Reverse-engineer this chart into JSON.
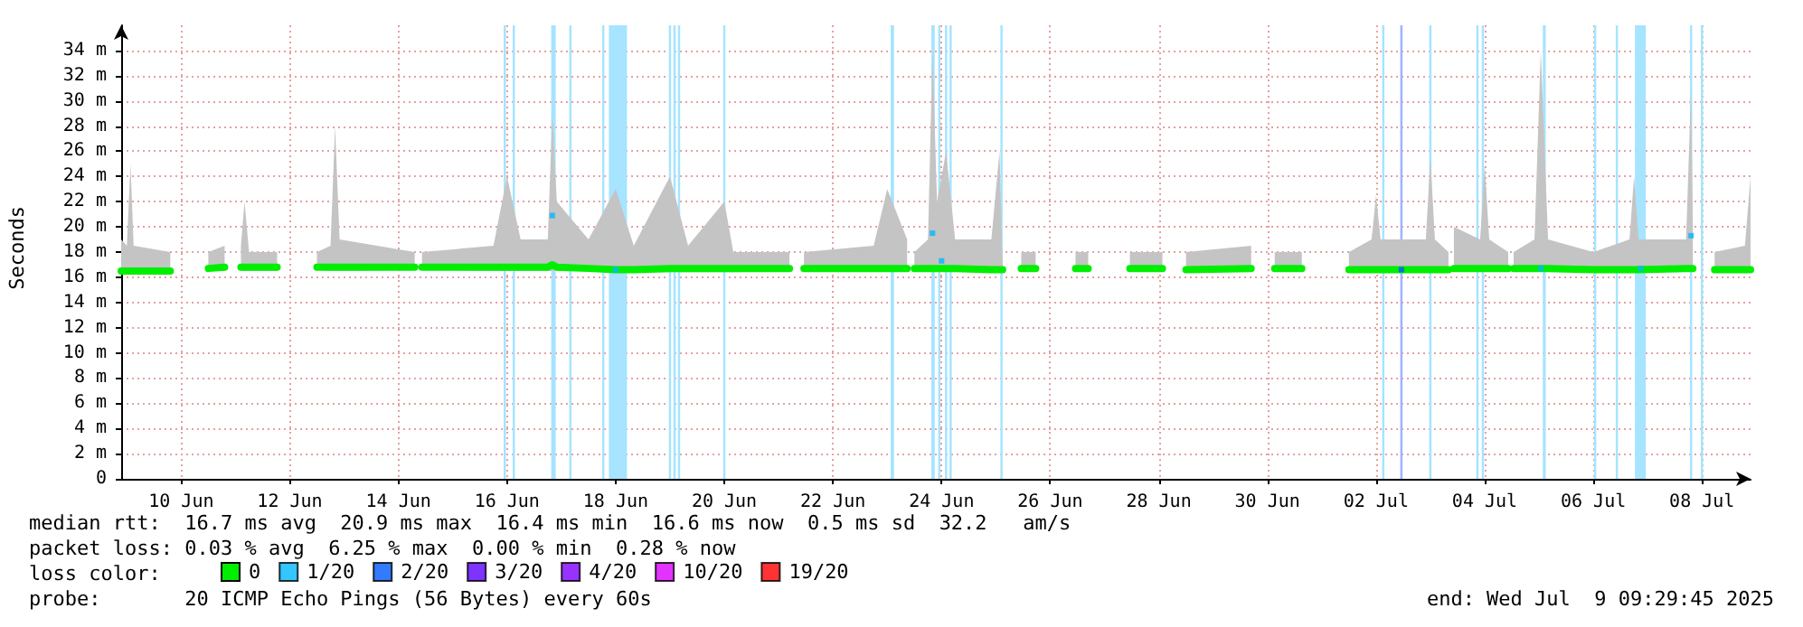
{
  "chart_data": {
    "type": "line",
    "ylabel": "Seconds",
    "legend_title": "loss color:",
    "legend": "bottom left",
    "grid": true,
    "xlim": [
      "2025-06-09T09:29",
      "2025-07-09T09:29"
    ],
    "xticks": [
      {
        "value": "2025-06-10T12:00",
        "label": "10 Jun"
      },
      {
        "value": "2025-06-12T12:00",
        "label": "12 Jun"
      },
      {
        "value": "2025-06-14T12:00",
        "label": "14 Jun"
      },
      {
        "value": "2025-06-16T12:00",
        "label": "16 Jun"
      },
      {
        "value": "2025-06-18T12:00",
        "label": "18 Jun"
      },
      {
        "value": "2025-06-20T12:00",
        "label": "20 Jun"
      },
      {
        "value": "2025-06-22T12:00",
        "label": "22 Jun"
      },
      {
        "value": "2025-06-24T12:00",
        "label": "24 Jun"
      },
      {
        "value": "2025-06-26T12:00",
        "label": "26 Jun"
      },
      {
        "value": "2025-06-28T12:00",
        "label": "28 Jun"
      },
      {
        "value": "2025-06-30T12:00",
        "label": "30 Jun"
      },
      {
        "value": "2025-07-02T12:00",
        "label": "02 Jul"
      },
      {
        "value": "2025-07-04T12:00",
        "label": "04 Jul"
      },
      {
        "value": "2025-07-06T12:00",
        "label": "06 Jul"
      },
      {
        "value": "2025-07-08T12:00",
        "label": "08 Jul"
      }
    ],
    "ylim": [
      0,
      36
    ],
    "yticks": [
      {
        "value": 0,
        "label": "0"
      },
      {
        "value": 2,
        "label": "2 m"
      },
      {
        "value": 4,
        "label": "4 m"
      },
      {
        "value": 6,
        "label": "6 m"
      },
      {
        "value": 8,
        "label": "8 m"
      },
      {
        "value": 10,
        "label": "10 m"
      },
      {
        "value": 12,
        "label": "12 m"
      },
      {
        "value": 14,
        "label": "14 m"
      },
      {
        "value": 16,
        "label": "16 m"
      },
      {
        "value": 18,
        "label": "18 m"
      },
      {
        "value": 20,
        "label": "20 m"
      },
      {
        "value": 22,
        "label": "22 m"
      },
      {
        "value": 24,
        "label": "24 m"
      },
      {
        "value": 26,
        "label": "26 m"
      },
      {
        "value": 28,
        "label": "28 m"
      },
      {
        "value": 30,
        "label": "30 m"
      },
      {
        "value": 32,
        "label": "32 m"
      },
      {
        "value": 34,
        "label": "34 m"
      }
    ],
    "series": [
      {
        "name": "0",
        "type": "line",
        "color": "#00ee00",
        "marker": "none",
        "x": [
          "2025-06-09T09:29",
          "2025-06-09T12:00",
          "2025-06-09T13:36",
          "2025-06-09T15:00",
          "2025-06-10T07:12",
          "2025-06-10T12:00",
          "2025-06-11T00:00",
          "2025-06-11T07:12",
          "2025-06-11T10:00",
          "2025-06-11T14:24",
          "2025-06-11T16:00",
          "2025-06-11T18:00",
          "2025-06-12T06:24",
          "2025-06-12T15:00",
          "2025-06-13T00:00",
          "2025-06-13T06:00",
          "2025-06-13T08:00",
          "2025-06-13T10:00",
          "2025-06-14T19:12",
          "2025-06-14T21:00",
          "2025-06-14T22:24",
          "2025-06-16T06:00",
          "2025-06-16T12:00",
          "2025-06-16T18:00",
          "2025-06-17T06:00",
          "2025-06-17T08:00",
          "2025-06-17T10:00",
          "2025-06-18T00:00",
          "2025-06-18T12:00",
          "2025-06-18T20:00",
          "2025-06-19T12:00",
          "2025-06-19T20:00",
          "2025-06-20T12:00",
          "2025-06-20T16:00",
          "2025-06-21T16:48",
          "2025-06-21T20:00",
          "2025-06-21T23:12",
          "2025-06-23T06:00",
          "2025-06-23T12:00",
          "2025-06-23T20:48",
          "2025-06-23T22:00",
          "2025-06-24T00:00",
          "2025-06-24T06:00",
          "2025-06-24T08:00",
          "2025-06-24T10:00",
          "2025-06-24T14:00",
          "2025-06-24T18:00",
          "2025-06-25T10:00",
          "2025-06-25T13:36",
          "2025-06-25T15:00",
          "2025-06-25T18:00",
          "2025-06-25T23:12",
          "2025-06-26T05:36",
          "2025-06-26T12:00",
          "2025-06-26T23:12",
          "2025-06-27T04:48",
          "2025-06-27T12:00",
          "2025-06-27T23:12",
          "2025-06-28T13:36",
          "2025-06-28T18:00",
          "2025-06-29T00:00",
          "2025-06-30T04:48",
          "2025-06-30T10:00",
          "2025-06-30T15:12",
          "2025-07-01T03:12",
          "2025-07-01T12:00",
          "2025-07-02T00:00",
          "2025-07-02T10:00",
          "2025-07-02T12:00",
          "2025-07-02T14:00",
          "2025-07-03T10:00",
          "2025-07-03T12:00",
          "2025-07-03T14:00",
          "2025-07-03T20:00",
          "2025-07-03T21:00",
          "2025-07-03T22:24",
          "2025-07-04T10:00",
          "2025-07-04T12:00",
          "2025-07-04T14:00",
          "2025-07-04T22:24",
          "2025-07-04T23:30",
          "2025-07-05T00:48",
          "2025-07-05T10:00",
          "2025-07-05T12:48",
          "2025-07-05T16:00",
          "2025-07-06T12:00",
          "2025-07-07T04:00",
          "2025-07-07T06:00",
          "2025-07-07T08:00",
          "2025-07-08T05:00",
          "2025-07-08T07:12",
          "2025-07-08T08:00",
          "2025-07-08T12:00",
          "2025-07-08T17:36",
          "2025-07-09T07:00",
          "2025-07-09T09:29"
        ],
        "values": [
          16.5,
          16.5,
          16.5,
          16.5,
          16.5,
          null,
          16.7,
          16.8,
          null,
          16.8,
          16.8,
          16.8,
          16.8,
          null,
          16.8,
          16.8,
          16.8,
          16.8,
          16.8,
          null,
          16.8,
          16.8,
          16.8,
          16.8,
          16.8,
          17,
          16.8,
          16.7,
          16.6,
          16.6,
          16.7,
          16.7,
          16.7,
          16.7,
          16.7,
          null,
          16.7,
          16.7,
          16.7,
          16.7,
          null,
          16.7,
          16.7,
          16.7,
          16.7,
          16.7,
          16.7,
          16.6,
          16.6,
          16.6,
          null,
          16.7,
          16.7,
          null,
          16.7,
          16.7,
          null,
          16.7,
          16.7,
          null,
          16.6,
          16.7,
          null,
          16.7,
          16.7,
          null,
          16.6,
          16.6,
          16.6,
          16.6,
          16.6,
          16.6,
          16.6,
          16.6,
          null,
          16.7,
          16.7,
          16.7,
          16.7,
          16.7,
          null,
          16.7,
          16.7,
          16.7,
          16.7,
          16.6,
          16.6,
          16.6,
          16.6,
          16.7,
          16.7,
          16.7,
          null,
          16.6,
          16.6,
          16.6
        ],
        "lower": [
          16.3,
          16.3,
          16.3,
          16.3,
          16.3,
          null,
          16.5,
          16.6,
          null,
          16.5,
          16.5,
          16.5,
          16.5,
          null,
          16.6,
          16.5,
          16.5,
          16.5,
          16.6,
          null,
          16.6,
          16.5,
          16.5,
          16.5,
          16.5,
          16.5,
          16.5,
          16.5,
          16.4,
          16.4,
          16.4,
          16.4,
          16.4,
          16.4,
          16.5,
          null,
          16.5,
          16.5,
          16.5,
          16.5,
          null,
          16.5,
          16.5,
          16.5,
          16.5,
          16.5,
          16.5,
          16.4,
          16.4,
          16.4,
          null,
          16.5,
          16.5,
          null,
          16.5,
          16.5,
          null,
          16.5,
          16.5,
          null,
          16.4,
          16.5,
          null,
          16.5,
          16.5,
          null,
          16.4,
          16.4,
          16.4,
          16.4,
          16.4,
          16.4,
          16.4,
          16.4,
          null,
          16.5,
          16.5,
          16.5,
          16.5,
          16.5,
          null,
          16.5,
          16.5,
          16.5,
          16.5,
          16.4,
          16.4,
          16.4,
          16.4,
          16.5,
          16.5,
          16.5,
          null,
          16.4,
          16.4,
          16.4
        ],
        "upper": [
          19,
          18.5,
          25,
          18.5,
          18,
          null,
          18,
          18.5,
          null,
          18.5,
          22,
          18,
          18,
          null,
          18,
          18.5,
          28,
          19,
          18,
          null,
          18,
          18.5,
          24,
          19,
          19,
          29,
          22,
          19,
          23,
          18.5,
          24,
          18.5,
          22,
          18,
          18,
          null,
          18,
          18.5,
          23,
          19,
          null,
          18,
          19,
          34,
          22,
          26,
          19,
          19,
          26,
          17,
          null,
          18,
          18,
          null,
          18,
          18,
          null,
          18,
          18,
          null,
          18,
          18.5,
          null,
          18,
          18,
          null,
          18,
          19,
          22.5,
          19,
          19,
          25.5,
          19,
          18,
          null,
          20,
          19,
          25,
          19,
          18,
          null,
          18,
          19,
          34,
          19,
          18,
          19,
          24,
          19,
          19,
          31,
          20,
          null,
          18,
          18.5,
          24
        ]
      },
      {
        "name": "1/20",
        "type": "scatter",
        "color": "#00b8ff",
        "marker": "square",
        "x": [
          "2025-06-17T08:00",
          "2025-06-18T12:00",
          "2025-06-24T08:00",
          "2025-06-24T12:00",
          "2025-07-05T12:48",
          "2025-07-07T09:00",
          "2025-07-08T07:12"
        ],
        "values": [
          20.9,
          16.6,
          19.5,
          17.3,
          16.7,
          16.7,
          19.3
        ]
      },
      {
        "name": "2/20",
        "type": "scatter",
        "color": "#0059ff",
        "marker": "square",
        "x": [
          "2025-07-02T23:12"
        ],
        "values": [
          16.6
        ]
      },
      {
        "name": "3/20",
        "type": "scatter",
        "color": "#5e00ff"
      },
      {
        "name": "4/20",
        "type": "scatter",
        "color": "#7e00ff"
      },
      {
        "name": "10/20",
        "type": "scatter",
        "color": "#dd00ff"
      },
      {
        "name": "19/20",
        "type": "scatter",
        "color": "#ff0000"
      }
    ],
    "bands": [
      {
        "axis": "x",
        "from": "2025-06-16T10:30",
        "to": "2025-06-16T11:30",
        "color": "#a6e4ff"
      },
      {
        "axis": "x",
        "from": "2025-06-16T14:30",
        "to": "2025-06-16T15:30",
        "color": "#a6e4ff"
      },
      {
        "axis": "x",
        "from": "2025-06-17T07:30",
        "to": "2025-06-17T09:30",
        "color": "#a6e4ff"
      },
      {
        "axis": "x",
        "from": "2025-06-17T15:30",
        "to": "2025-06-17T16:30",
        "color": "#a6e4ff"
      },
      {
        "axis": "x",
        "from": "2025-06-18T06:00",
        "to": "2025-06-18T07:00",
        "color": "#a6e4ff"
      },
      {
        "axis": "x",
        "from": "2025-06-18T09:00",
        "to": "2025-06-18T17:00",
        "color": "#a6e4ff"
      },
      {
        "axis": "x",
        "from": "2025-06-19T11:30",
        "to": "2025-06-19T12:30",
        "color": "#a6e4ff"
      },
      {
        "axis": "x",
        "from": "2025-06-19T13:30",
        "to": "2025-06-19T14:30",
        "color": "#a6e4ff"
      },
      {
        "axis": "x",
        "from": "2025-06-19T15:30",
        "to": "2025-06-19T16:30",
        "color": "#a6e4ff"
      },
      {
        "axis": "x",
        "from": "2025-06-20T11:30",
        "to": "2025-06-20T12:30",
        "color": "#a6e4ff"
      },
      {
        "axis": "x",
        "from": "2025-06-23T13:30",
        "to": "2025-06-23T15:00",
        "color": "#a6e4ff"
      },
      {
        "axis": "x",
        "from": "2025-06-24T07:30",
        "to": "2025-06-24T09:00",
        "color": "#a6e4ff"
      },
      {
        "axis": "x",
        "from": "2025-06-24T10:30",
        "to": "2025-06-24T11:30",
        "color": "#a6e4ff"
      },
      {
        "axis": "x",
        "from": "2025-06-24T13:30",
        "to": "2025-06-24T14:30",
        "color": "#a6e4ff"
      },
      {
        "axis": "x",
        "from": "2025-06-24T15:30",
        "to": "2025-06-24T16:30",
        "color": "#a6e4ff"
      },
      {
        "axis": "x",
        "from": "2025-06-25T14:00",
        "to": "2025-06-25T15:00",
        "color": "#a6e4ff"
      },
      {
        "axis": "x",
        "from": "2025-07-02T14:42",
        "to": "2025-07-02T15:42",
        "color": "#a6e4ff"
      },
      {
        "axis": "x",
        "from": "2025-07-02T22:42",
        "to": "2025-07-02T23:42",
        "color": "#9cb4ff"
      },
      {
        "axis": "x",
        "from": "2025-07-03T11:30",
        "to": "2025-07-03T12:30",
        "color": "#a6e4ff"
      },
      {
        "axis": "x",
        "from": "2025-07-04T08:18",
        "to": "2025-07-04T09:18",
        "color": "#a6e4ff"
      },
      {
        "axis": "x",
        "from": "2025-07-04T10:42",
        "to": "2025-07-04T11:42",
        "color": "#a6e4ff"
      },
      {
        "axis": "x",
        "from": "2025-07-05T13:42",
        "to": "2025-07-05T15:00",
        "color": "#a6e4ff"
      },
      {
        "axis": "x",
        "from": "2025-07-06T12:18",
        "to": "2025-07-06T13:18",
        "color": "#a6e4ff"
      },
      {
        "axis": "x",
        "from": "2025-07-06T21:54",
        "to": "2025-07-06T22:54",
        "color": "#a6e4ff"
      },
      {
        "axis": "x",
        "from": "2025-07-07T06:24",
        "to": "2025-07-07T11:12",
        "color": "#a6e4ff"
      },
      {
        "axis": "x",
        "from": "2025-07-08T06:42",
        "to": "2025-07-08T07:42",
        "color": "#a6e4ff"
      },
      {
        "axis": "x",
        "from": "2025-07-08T11:30",
        "to": "2025-07-08T12:30",
        "color": "#a6e4ff"
      }
    ],
    "annotations": [
      "median rtt:  16.7 ms avg  20.9 ms max  16.4 ms min  16.6 ms now  0.5 ms sd  32.2   am/s",
      "packet loss: 0.03 % avg  6.25 % max  0.00 % min  0.28 % now",
      "probe:       20 ICMP Echo Pings (56 Bytes) every 60s",
      "end: Wed Jul  9 09:29:45 2025"
    ]
  }
}
